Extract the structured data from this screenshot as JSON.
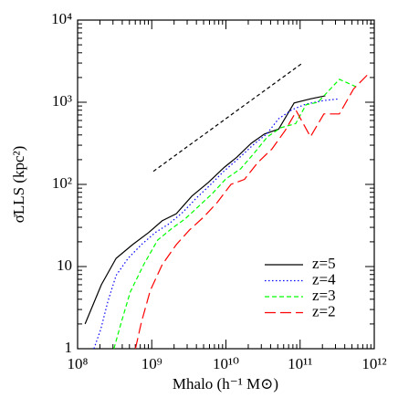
{
  "chart_data": {
    "type": "line",
    "xlabel": "Mhalo (h⁻¹ M⊙)",
    "ylabel": "σ̄LLS (kpc²)",
    "xlog": true,
    "ylog": true,
    "xlim": [
      100000000.0,
      1000000000000.0
    ],
    "ylim": [
      1,
      10000
    ],
    "xticks": [
      {
        "value": 100000000.0,
        "label": "10⁸"
      },
      {
        "value": 1000000000.0,
        "label": "10⁹"
      },
      {
        "value": 10000000000.0,
        "label": "10¹⁰"
      },
      {
        "value": 100000000000.0,
        "label": "10¹¹"
      },
      {
        "value": 1000000000000.0,
        "label": "10¹²"
      }
    ],
    "yticks": [
      1,
      10,
      {
        "value": 100,
        "label": "10²"
      },
      {
        "value": 1000,
        "label": "10³"
      },
      {
        "value": 10000,
        "label": "10⁴"
      }
    ],
    "legend": "lower right",
    "series": [
      {
        "name": "z=5",
        "color": "#000000",
        "dash": "solid",
        "x": [
          126000000.0,
          209000000.0,
          331000000.0,
          550000000.0,
          910000000.0,
          1380000000.0,
          2140000000.0,
          3470000000.0,
          5750000000.0,
          9550000000.0,
          14100000000.0,
          21900000000.0,
          33100000000.0,
          51300000000.0,
          83000000000.0,
          138000000000.0,
          219000000000.0
        ],
        "values": [
          2.0,
          6,
          12.6,
          18.5,
          26,
          36,
          44,
          72,
          105,
          162,
          215,
          316,
          410,
          470,
          980,
          1100,
          1200
        ]
      },
      {
        "name": "z=4",
        "color": "#0000ff",
        "dash": "dotted",
        "x": [
          166000000.0,
          204000000.0,
          257000000.0,
          331000000.0,
          479000000.0,
          724000000.0,
          1120000000.0,
          1700000000.0,
          2630000000.0,
          3980000000.0,
          6030000000.0,
          9330000000.0,
          15100000000.0,
          24000000000.0,
          35500000000.0,
          51300000000.0,
          77600000000.0,
          120000000000.0,
          209000000000.0,
          339000000000.0
        ],
        "values": [
          1,
          1.7,
          3.8,
          7.8,
          12.6,
          18.5,
          26,
          33,
          46,
          68,
          97,
          144,
          210,
          310,
          410,
          630,
          810,
          950,
          1050,
          1100
        ]
      },
      {
        "name": "z=3",
        "color": "#00ff00",
        "dash": "dashed",
        "x": [
          309000000.0,
          389000000.0,
          513000000.0,
          776000000.0,
          1200000000.0,
          1860000000.0,
          2820000000.0,
          4370000000.0,
          6610000000.0,
          10000000000.0,
          15800000000.0,
          24000000000.0,
          36300000000.0,
          55000000000.0,
          87100000000.0,
          120000000000.0,
          174000000000.0,
          339000000000.0,
          562000000000.0
        ],
        "values": [
          1,
          2.1,
          4.9,
          10.5,
          21,
          29,
          38,
          55,
          78,
          117,
          155,
          240,
          380,
          490,
          550,
          930,
          1000,
          1900,
          1550
        ]
      },
      {
        "name": "z=2",
        "color": "#ff0000",
        "dash": "longdash",
        "x": [
          603000000.0,
          724000000.0,
          955000000.0,
          1380000000.0,
          2140000000.0,
          3240000000.0,
          5010000000.0,
          7590000000.0,
          11700000000.0,
          17800000000.0,
          26900000000.0,
          41700000000.0,
          63100000000.0,
          89100000000.0,
          138000000000.0,
          209000000000.0,
          339000000000.0,
          525000000000.0,
          871000000000.0
        ],
        "values": [
          1,
          2.1,
          5.1,
          10.5,
          18.5,
          28,
          40,
          60,
          100,
          115,
          185,
          270,
          455,
          780,
          380,
          720,
          720,
          1450,
          2300
        ]
      }
    ],
    "reference_line": {
      "color": "#000000",
      "x": [
        1050000000.0,
        105000000000.0
      ],
      "values": [
        144,
        2950
      ]
    }
  }
}
